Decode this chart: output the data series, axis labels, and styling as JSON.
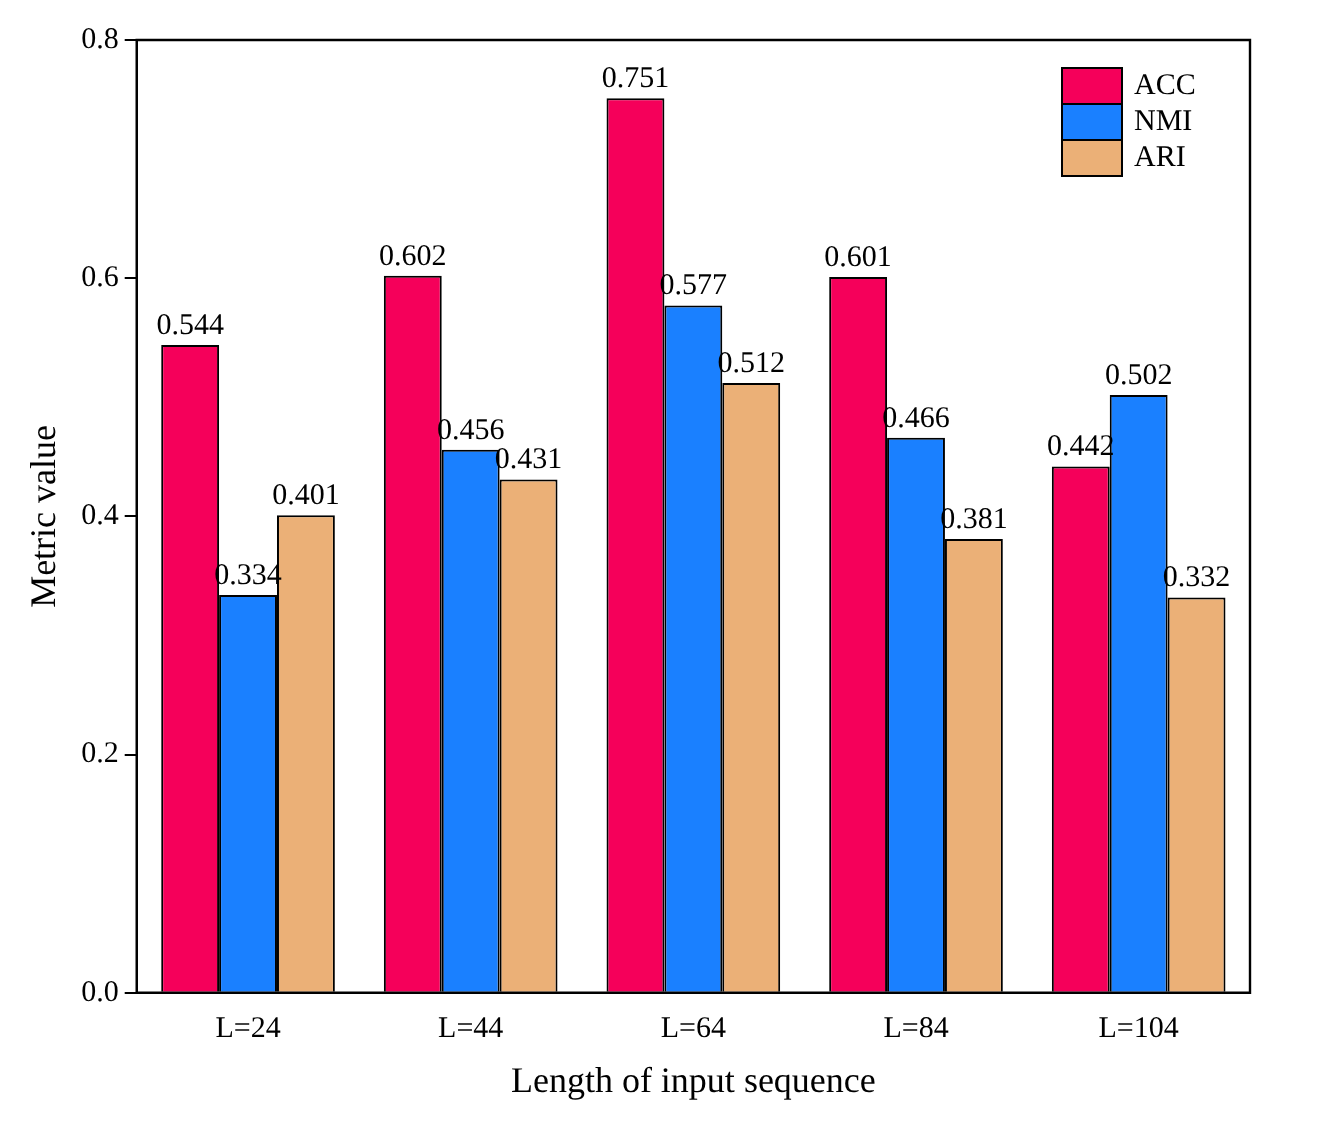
{
  "chart_data": {
    "type": "bar",
    "xlabel": "Length of input sequence",
    "ylabel": "Metric value",
    "categories": [
      "L=24",
      "L=44",
      "L=64",
      "L=84",
      "L=104"
    ],
    "series": [
      {
        "name": "ACC",
        "color": "#f5005a",
        "values": [
          0.544,
          0.602,
          0.751,
          0.601,
          0.442
        ]
      },
      {
        "name": "NMI",
        "color": "#1a80ff",
        "values": [
          0.334,
          0.456,
          0.577,
          0.466,
          0.502
        ]
      },
      {
        "name": "ARI",
        "color": "#ebb077",
        "values": [
          0.401,
          0.431,
          0.512,
          0.381,
          0.332
        ]
      }
    ],
    "ylim": [
      0,
      0.8
    ],
    "yticks": [
      {
        "value": 0,
        "label": "0.0"
      },
      {
        "value": 0.2,
        "label": "0.2"
      },
      {
        "value": 0.4,
        "label": "0.4"
      },
      {
        "value": 0.6,
        "label": "0.6"
      },
      {
        "value": 0.8,
        "label": "0.8"
      }
    ],
    "grid": false,
    "legend": "top right",
    "data_labels": true
  }
}
